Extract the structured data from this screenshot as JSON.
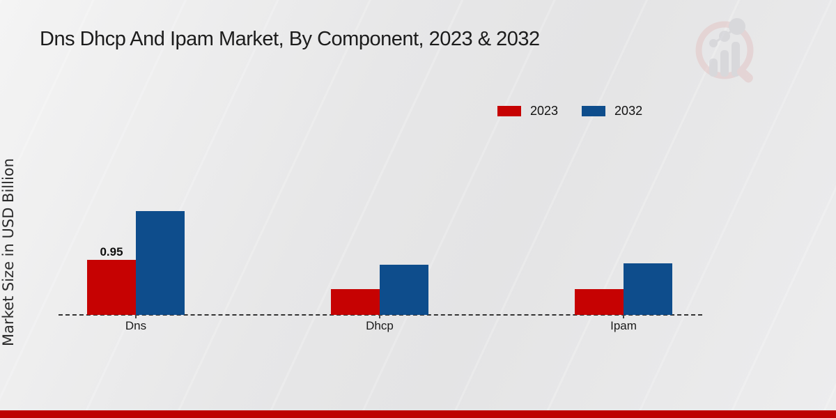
{
  "page": {
    "title": "Dns Dhcp And Ipam Market, By Component, 2023 & 2032"
  },
  "colors": {
    "series_2023": "#c60202",
    "series_2032": "#0e4d8c",
    "bottom_strip": "#bd0202",
    "title_text": "#1c1c1c",
    "axis_dash": "#333333"
  },
  "icons": {
    "watermark": "growth-chart-magnifier-logo"
  },
  "legend": {
    "items": [
      {
        "label": "2023"
      },
      {
        "label": "2032"
      }
    ]
  },
  "chart_data": {
    "type": "bar",
    "title": "Dns Dhcp And Ipam Market, By Component, 2023 & 2032",
    "xlabel": "",
    "ylabel": "Market Size in USD Billion",
    "categories": [
      "Dns",
      "Dhcp",
      "Ipam"
    ],
    "series": [
      {
        "name": "2023",
        "color": "#c60202",
        "values": [
          0.95,
          0.44,
          0.44
        ]
      },
      {
        "name": "2032",
        "color": "#0e4d8c",
        "values": [
          1.79,
          0.87,
          0.89
        ]
      }
    ],
    "data_labels": [
      {
        "category": "Dns",
        "series": "2023",
        "text": "0.95"
      }
    ],
    "ylim": [
      0,
      2
    ],
    "grid": false,
    "baseline_style": "dashed",
    "legend_position": "top-right"
  }
}
